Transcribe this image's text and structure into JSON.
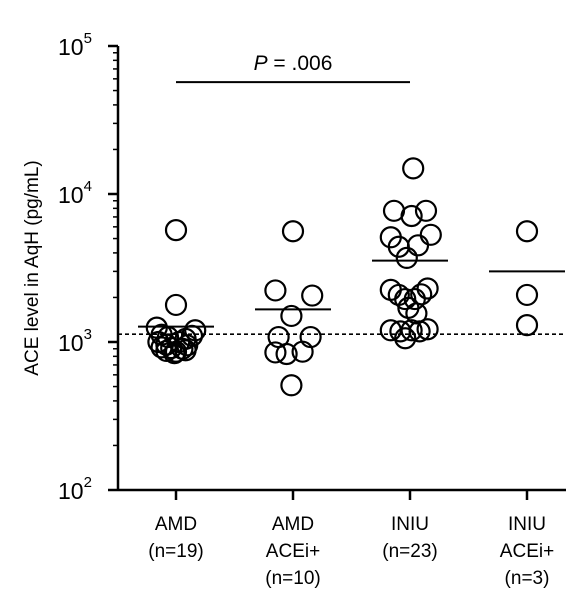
{
  "chart_data": {
    "type": "scatter",
    "title": "",
    "ylabel": "ACE level in AqH (pg/mL)",
    "xlabel": "",
    "y_scale": "log",
    "ylim": [
      100,
      100000
    ],
    "y_ticks": [
      {
        "value": 100,
        "base": "10",
        "exp": "2"
      },
      {
        "value": 1000,
        "base": "10",
        "exp": "3"
      },
      {
        "value": 10000,
        "base": "10",
        "exp": "4"
      },
      {
        "value": 100000,
        "base": "10",
        "exp": "5"
      }
    ],
    "categories": [
      {
        "lines": [
          "AMD",
          "(n=19)"
        ]
      },
      {
        "lines": [
          "AMD",
          "ACEi+",
          "(n=10)"
        ]
      },
      {
        "lines": [
          "INIU",
          "(n=23)"
        ]
      },
      {
        "lines": [
          "INIU",
          "ACEi+",
          "(n=3)"
        ]
      }
    ],
    "groups": [
      {
        "mean": 1270,
        "points": [
          {
            "dx": 0,
            "y": 5700
          },
          {
            "dx": 0,
            "y": 1780
          },
          {
            "dx": -0.6,
            "y": 1250
          },
          {
            "dx": 0.6,
            "y": 1200
          },
          {
            "dx": -0.45,
            "y": 1120
          },
          {
            "dx": 0.5,
            "y": 1100
          },
          {
            "dx": -0.25,
            "y": 1080
          },
          {
            "dx": 0.3,
            "y": 1050
          },
          {
            "dx": -0.55,
            "y": 1000
          },
          {
            "dx": 0.1,
            "y": 1000
          },
          {
            "dx": -0.3,
            "y": 960
          },
          {
            "dx": 0.35,
            "y": 950
          },
          {
            "dx": -0.45,
            "y": 920
          },
          {
            "dx": -0.15,
            "y": 910
          },
          {
            "dx": 0.2,
            "y": 900
          },
          {
            "dx": -0.3,
            "y": 870
          },
          {
            "dx": 0,
            "y": 860
          },
          {
            "dx": 0.3,
            "y": 880
          },
          {
            "dx": -0.05,
            "y": 840
          }
        ]
      },
      {
        "mean": 1660,
        "points": [
          {
            "dx": 0,
            "y": 5600
          },
          {
            "dx": -0.55,
            "y": 2230
          },
          {
            "dx": 0.6,
            "y": 2060
          },
          {
            "dx": -0.05,
            "y": 1500
          },
          {
            "dx": -0.45,
            "y": 1080
          },
          {
            "dx": 0.55,
            "y": 1080
          },
          {
            "dx": -0.55,
            "y": 850
          },
          {
            "dx": -0.2,
            "y": 830
          },
          {
            "dx": 0.3,
            "y": 860
          },
          {
            "dx": -0.05,
            "y": 510
          }
        ]
      },
      {
        "mean": 3550,
        "points": [
          {
            "dx": 0.1,
            "y": 14900
          },
          {
            "dx": -0.5,
            "y": 7700
          },
          {
            "dx": 0.5,
            "y": 7700
          },
          {
            "dx": 0.05,
            "y": 7100
          },
          {
            "dx": -0.6,
            "y": 5100
          },
          {
            "dx": 0.65,
            "y": 5300
          },
          {
            "dx": -0.35,
            "y": 4400
          },
          {
            "dx": 0.25,
            "y": 4500
          },
          {
            "dx": -0.1,
            "y": 3700
          },
          {
            "dx": -0.6,
            "y": 2250
          },
          {
            "dx": 0.55,
            "y": 2300
          },
          {
            "dx": -0.35,
            "y": 2080
          },
          {
            "dx": 0.35,
            "y": 2100
          },
          {
            "dx": -0.15,
            "y": 1950
          },
          {
            "dx": 0.15,
            "y": 1950
          },
          {
            "dx": -0.05,
            "y": 1700
          },
          {
            "dx": 0.2,
            "y": 1560
          },
          {
            "dx": -0.6,
            "y": 1200
          },
          {
            "dx": 0.55,
            "y": 1220
          },
          {
            "dx": -0.3,
            "y": 1180
          },
          {
            "dx": 0.05,
            "y": 1200
          },
          {
            "dx": 0.3,
            "y": 1180
          },
          {
            "dx": -0.15,
            "y": 1060
          }
        ]
      },
      {
        "mean": 3000,
        "points": [
          {
            "dx": 0,
            "y": 5600
          },
          {
            "dx": 0,
            "y": 2080
          },
          {
            "dx": 0,
            "y": 1300
          }
        ]
      }
    ],
    "reference_line": {
      "y": 1130,
      "style": "dashed"
    },
    "annotations": [
      {
        "text_italic": "P",
        "text": " = .006",
        "from_group": 0,
        "to_group": 2,
        "y": 57000
      }
    ],
    "grid": false,
    "legend": "none"
  }
}
